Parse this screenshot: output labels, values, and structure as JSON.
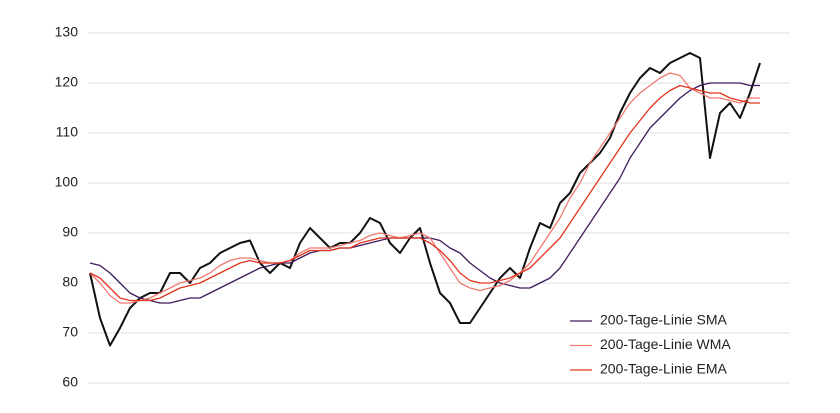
{
  "chart_data": {
    "type": "line",
    "ylim": [
      60,
      130
    ],
    "yticks": [
      60,
      70,
      80,
      90,
      100,
      110,
      120,
      130
    ],
    "grid": true,
    "legend": "lower right",
    "series": [
      {
        "color": "#111111",
        "values": [
          82,
          73,
          67.5,
          71,
          75,
          77,
          78,
          78,
          82,
          82,
          80,
          83,
          84,
          86,
          87,
          88,
          88.5,
          84,
          82,
          84,
          83,
          88,
          91,
          89,
          87,
          88,
          88,
          90,
          93,
          92,
          88,
          86,
          89,
          91,
          84,
          78,
          76,
          72,
          72,
          75,
          78,
          81,
          83,
          81,
          87,
          92,
          91,
          96,
          98,
          102,
          104,
          106,
          109,
          114,
          118,
          121,
          123,
          122,
          124,
          125,
          126,
          125,
          105,
          114,
          116,
          113,
          118,
          124
        ]
      },
      {
        "name": "200-Tage-Linie SMA",
        "color": "#3d1a5c",
        "values": [
          84,
          83.5,
          82,
          80,
          78,
          77,
          76.5,
          76,
          76,
          76.5,
          77,
          77,
          78,
          79,
          80,
          81,
          82,
          83,
          83.5,
          84,
          84,
          85,
          86,
          86.5,
          86.5,
          87,
          87,
          87.5,
          88,
          88.5,
          89,
          89,
          89,
          89,
          89,
          88.5,
          87,
          86,
          84,
          82.5,
          81,
          80,
          79.5,
          79,
          79,
          80,
          81,
          83,
          86,
          89,
          92,
          95,
          98,
          101,
          105,
          108,
          111,
          113,
          115,
          117,
          118.5,
          119.5,
          120,
          120,
          120,
          120,
          119.5,
          119.5
        ]
      },
      {
        "name": "200-Tage-Linie WMA",
        "color": "#f07a72",
        "values": [
          82,
          80,
          77.5,
          76,
          76,
          76.5,
          77,
          78,
          79,
          80,
          80.5,
          81,
          82,
          83.5,
          84.5,
          85,
          85,
          84.5,
          84,
          84,
          84.5,
          86,
          87,
          87,
          87,
          87.5,
          88,
          88.5,
          89.5,
          90,
          89.5,
          89,
          89.5,
          90,
          89,
          86,
          83,
          80,
          79,
          78.5,
          79,
          79.5,
          80.5,
          82,
          84,
          87,
          90,
          93,
          97,
          100,
          104,
          107,
          110,
          113,
          116,
          118,
          119.5,
          121,
          122,
          121.5,
          119,
          118,
          117,
          117,
          116.5,
          116,
          117,
          117
        ]
      },
      {
        "name": "200-Tage-Linie EMA",
        "color": "#e0341c",
        "values": [
          82,
          81,
          79,
          77,
          76.5,
          76.5,
          76.5,
          77,
          78,
          79,
          79.5,
          80,
          81,
          82,
          83,
          84,
          84.5,
          84,
          84,
          84,
          84.5,
          85.5,
          86.5,
          86.5,
          86.5,
          87,
          87,
          88,
          88.5,
          89,
          89,
          89,
          89,
          89,
          88,
          86.5,
          84.5,
          82,
          80.5,
          80,
          80,
          80.5,
          81,
          82,
          83,
          85,
          87,
          89,
          92,
          95,
          98,
          101,
          104,
          107,
          110,
          112.5,
          115,
          117,
          118.5,
          119.5,
          119,
          118.5,
          118,
          118,
          117,
          116.5,
          116,
          116
        ]
      }
    ]
  }
}
